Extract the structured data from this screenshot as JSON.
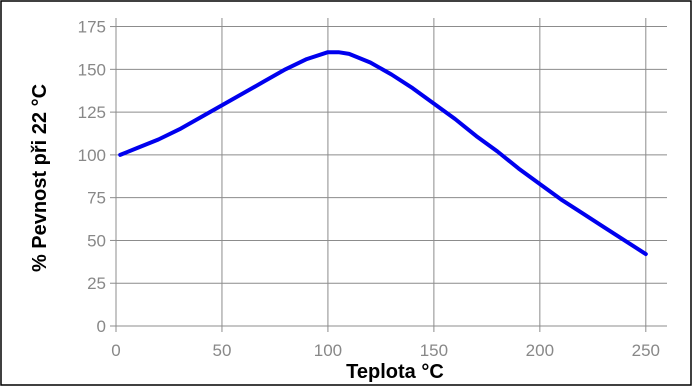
{
  "chart_data": {
    "type": "line",
    "xlabel": "Teplota °C",
    "ylabel": "% Pevnost při 22 °C",
    "xlim": [
      0,
      260
    ],
    "ylim": [
      0,
      180
    ],
    "x_ticks": [
      0,
      50,
      100,
      150,
      200,
      250
    ],
    "y_ticks": [
      0,
      25,
      50,
      75,
      100,
      125,
      150,
      175
    ],
    "grid": true,
    "series_color": "#0000ee",
    "series": [
      {
        "x": [
          2,
          10,
          20,
          30,
          40,
          50,
          60,
          70,
          80,
          90,
          100,
          105,
          110,
          120,
          130,
          140,
          150,
          160,
          170,
          180,
          190,
          200,
          210,
          220,
          230,
          240,
          250
        ],
        "values": [
          100,
          104,
          109,
          115,
          122,
          129,
          136,
          143,
          150,
          156,
          160,
          160,
          159,
          154,
          147,
          139,
          130,
          121,
          111,
          102,
          92,
          83,
          74,
          66,
          58,
          50,
          42
        ]
      }
    ]
  }
}
